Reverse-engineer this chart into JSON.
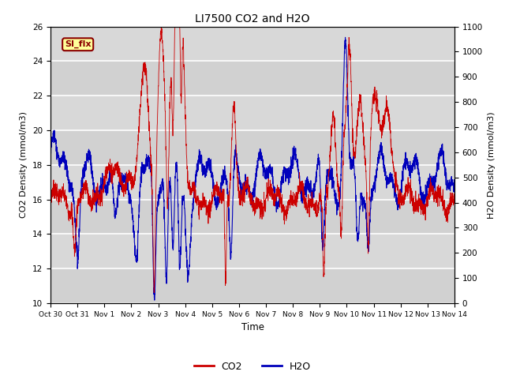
{
  "title": "LI7500 CO2 and H2O",
  "xlabel": "Time",
  "ylabel_left": "CO2 Density (mmol/m3)",
  "ylabel_right": "H2O Density (mmol/m3)",
  "ylim_left": [
    10,
    26
  ],
  "ylim_right": [
    0,
    1100
  ],
  "yticks_left": [
    10,
    12,
    14,
    16,
    18,
    20,
    22,
    24,
    26
  ],
  "yticks_right": [
    0,
    100,
    200,
    300,
    400,
    500,
    600,
    700,
    800,
    900,
    1000,
    1100
  ],
  "xtick_labels": [
    "Oct 30",
    "Oct 31",
    "Nov 1",
    "Nov 2",
    "Nov 3",
    "Nov 4",
    "Nov 5",
    "Nov 6",
    "Nov 7",
    "Nov 8",
    "Nov 9",
    "Nov 10",
    "Nov 11",
    "Nov 12",
    "Nov 13",
    "Nov 14"
  ],
  "color_co2": "#cc0000",
  "color_h2o": "#0000bb",
  "annotation_text": "SI_flx",
  "plot_bg_color": "#d8d8d8",
  "grid_color": "#ffffff",
  "n_points": 3000,
  "seed": 7
}
